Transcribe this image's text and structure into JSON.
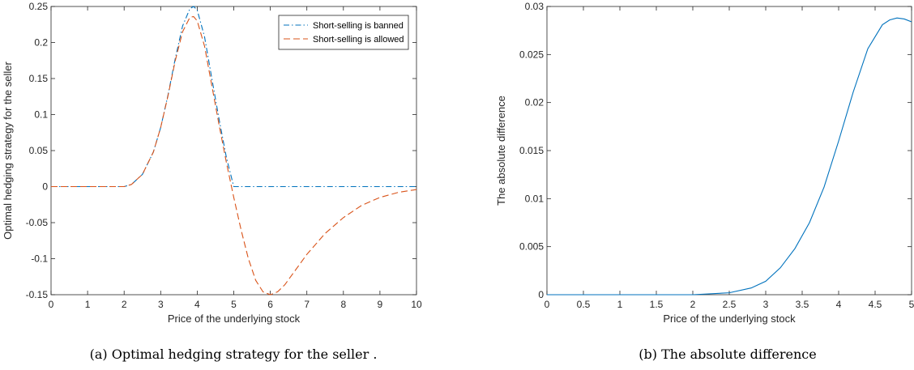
{
  "chart_data": [
    {
      "type": "line",
      "xlabel": "Price of the underlying stock",
      "ylabel": "Optimal hedging strategy for the seller",
      "caption": "(a)  Optimal hedging strategy for the seller .",
      "xlim": [
        0,
        10
      ],
      "ylim": [
        -0.15,
        0.25
      ],
      "xticks": [
        "0",
        "1",
        "2",
        "3",
        "4",
        "5",
        "6",
        "7",
        "8",
        "9",
        "10"
      ],
      "yticks": [
        "-0.15",
        "-0.1",
        "-0.05",
        "0",
        "0.05",
        "0.1",
        "0.15",
        "0.2",
        "0.25"
      ],
      "legend_position": "top-right",
      "series": [
        {
          "name": "Short-selling is banned",
          "color": "#0072BD",
          "style": "dash-dot",
          "x": [
            0,
            1,
            2,
            2.2,
            2.5,
            2.8,
            3.0,
            3.2,
            3.4,
            3.6,
            3.8,
            3.9,
            4.0,
            4.2,
            4.4,
            4.6,
            4.8,
            5.0,
            6,
            7,
            8,
            9,
            10
          ],
          "y": [
            0,
            0,
            0,
            0.003,
            0.017,
            0.048,
            0.082,
            0.127,
            0.178,
            0.223,
            0.247,
            0.25,
            0.245,
            0.208,
            0.15,
            0.093,
            0.04,
            0,
            0,
            0,
            0,
            0,
            0
          ]
        },
        {
          "name": "Short-selling is allowed",
          "color": "#D95319",
          "style": "dashed",
          "x": [
            0,
            1,
            2,
            2.2,
            2.5,
            2.8,
            3.0,
            3.2,
            3.4,
            3.6,
            3.8,
            3.9,
            4.0,
            4.2,
            4.4,
            4.6,
            4.8,
            5.0,
            5.2,
            5.4,
            5.6,
            5.8,
            6.0,
            6.2,
            6.4,
            6.6,
            6.8,
            7.0,
            7.5,
            8.0,
            8.5,
            9.0,
            9.5,
            10
          ],
          "y": [
            0,
            0,
            0,
            0.003,
            0.017,
            0.048,
            0.082,
            0.126,
            0.175,
            0.215,
            0.235,
            0.236,
            0.23,
            0.195,
            0.14,
            0.085,
            0.033,
            -0.015,
            -0.06,
            -0.1,
            -0.13,
            -0.146,
            -0.15,
            -0.146,
            -0.136,
            -0.122,
            -0.108,
            -0.094,
            -0.065,
            -0.043,
            -0.026,
            -0.015,
            -0.008,
            -0.004
          ]
        }
      ]
    },
    {
      "type": "line",
      "xlabel": "Price of the underlying stock",
      "ylabel": "The absolute difference",
      "caption": "(b)  The absolute difference",
      "xlim": [
        0,
        5
      ],
      "ylim": [
        0,
        0.03
      ],
      "xticks": [
        "0",
        "0.5",
        "1",
        "1.5",
        "2",
        "2.5",
        "3",
        "3.5",
        "4",
        "4.5",
        "5"
      ],
      "yticks": [
        "0",
        "0.005",
        "0.01",
        "0.015",
        "0.02",
        "0.025",
        "0.03"
      ],
      "series": [
        {
          "color": "#0072BD",
          "style": "solid",
          "x": [
            0,
            0.5,
            1.0,
            1.5,
            2.0,
            2.5,
            2.8,
            3.0,
            3.2,
            3.4,
            3.6,
            3.8,
            4.0,
            4.2,
            4.4,
            4.6,
            4.7,
            4.8,
            4.9,
            5.0
          ],
          "y": [
            0,
            0,
            0,
            0,
            0,
            0.0002,
            0.0007,
            0.0014,
            0.0028,
            0.0048,
            0.0075,
            0.0112,
            0.016,
            0.0211,
            0.0256,
            0.0281,
            0.0286,
            0.0288,
            0.0287,
            0.0284
          ]
        }
      ]
    }
  ]
}
